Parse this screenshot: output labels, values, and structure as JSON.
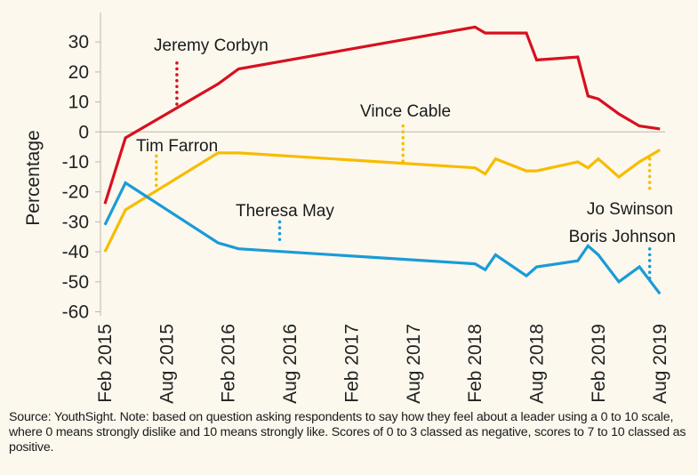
{
  "chart_data": {
    "type": "line",
    "title": "",
    "xlabel": "",
    "ylabel": "Percentage",
    "ylim": [
      -60,
      35
    ],
    "yticks": [
      30,
      20,
      10,
      0,
      -10,
      -20,
      -30,
      -40,
      -50,
      -60
    ],
    "xtick_labels": [
      "Feb 2015",
      "Aug 2015",
      "Feb 2016",
      "Aug 2016",
      "Feb 2017",
      "Aug 2017",
      "Feb 2018",
      "Aug 2018",
      "Feb 2019",
      "Aug 2019"
    ],
    "xticks": [
      "2015-02",
      "2015-08",
      "2016-02",
      "2016-08",
      "2017-02",
      "2017-08",
      "2018-02",
      "2018-08",
      "2019-02",
      "2019-08"
    ],
    "x": [
      "2015-02",
      "2015-04",
      "2016-01",
      "2016-03",
      "2018-02",
      "2018-03",
      "2018-04",
      "2018-07",
      "2018-08",
      "2018-12",
      "2019-01",
      "2019-02",
      "2019-04",
      "2019-06",
      "2019-08"
    ],
    "series": [
      {
        "key": "labour",
        "color": "#d7101f",
        "values": [
          -24,
          -2,
          16,
          21,
          35,
          33,
          33,
          33,
          24,
          25,
          12,
          11,
          6,
          2,
          1
        ]
      },
      {
        "key": "libdem",
        "color": "#f7bc00",
        "values": [
          -40,
          -26,
          -7,
          -7,
          -12,
          -14,
          -9,
          -13,
          -13,
          -10,
          -12,
          -9,
          -15,
          -10,
          -6
        ]
      },
      {
        "key": "conservative",
        "color": "#1a9bd7",
        "values": [
          -31,
          -17,
          -37,
          -39,
          -44,
          -46,
          -41,
          -48,
          -45,
          -43,
          -38,
          -41,
          -50,
          -45,
          -54
        ]
      }
    ],
    "annotations": [
      {
        "text": "Jeremy Corbyn",
        "color": "#d7101f",
        "date": "2015-09",
        "from": 23,
        "to": 8
      },
      {
        "text": "Tim Farron",
        "color": "#f7bc00",
        "date": "2015-07",
        "from": -8,
        "to": -18
      },
      {
        "text": "Theresa May",
        "color": "#1a9bd7",
        "date": "2016-07",
        "from": -30,
        "to": -37
      },
      {
        "text": "Vince Cable",
        "color": "#f7bc00",
        "date": "2017-07",
        "from": 2,
        "to": -10
      },
      {
        "text": "Jo Swinson",
        "color": "#f7bc00",
        "date": "2019-07",
        "from": -9,
        "to": -19
      },
      {
        "text": "Boris Johnson",
        "color": "#1a9bd7",
        "date": "2019-07",
        "from": -39,
        "to": -49
      }
    ],
    "grid": false,
    "legend": "none"
  },
  "footnote": "Source: YouthSight. Note: based on question asking respondents to say how they feel about a leader using a 0 to 10 scale, where 0 means strongly dislike and 10 means strongly like. Scores of 0 to 3 classed as negative, scores to 7 to 10 classed as positive."
}
